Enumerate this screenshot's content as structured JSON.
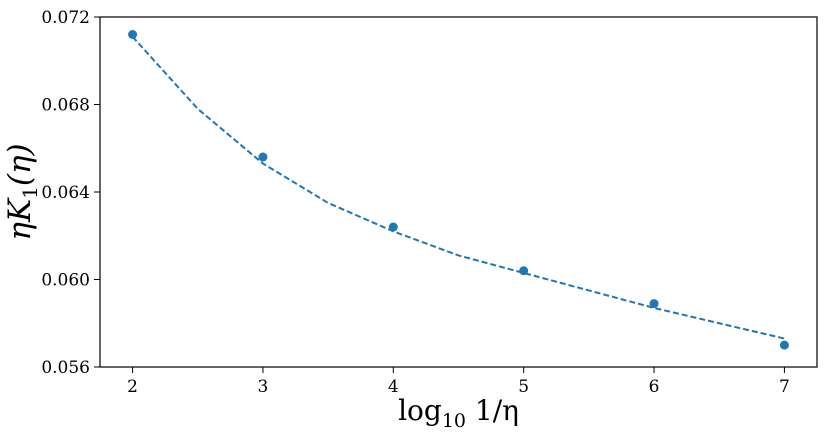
{
  "chart_data": {
    "type": "scatter",
    "xlabel": {
      "main": "log",
      "sub": "10",
      "tail": " 1/η"
    },
    "ylabel": {
      "main": "ηK",
      "sub": "1",
      "tail": "(η)"
    },
    "xlim": [
      1.75,
      7.25
    ],
    "ylim": [
      0.056,
      0.072
    ],
    "x_ticks": [
      2,
      3,
      4,
      5,
      6,
      7
    ],
    "y_ticks": [
      0.056,
      0.06,
      0.064,
      0.068,
      0.072
    ],
    "y_tick_labels": [
      "0.056",
      "0.060",
      "0.064",
      "0.068",
      "0.072"
    ],
    "grid": false,
    "series": [
      {
        "kind": "points",
        "color": "#1f77b4",
        "x": [
          2,
          3,
          4,
          5,
          6,
          7
        ],
        "y": [
          0.0712,
          0.0656,
          0.0624,
          0.0604,
          0.0589,
          0.057
        ]
      },
      {
        "kind": "dashed-fit",
        "color": "#1f77b4",
        "x": [
          2.0,
          2.5,
          3.0,
          3.5,
          4.0,
          4.5,
          5.0,
          5.5,
          6.0,
          6.5,
          7.0
        ],
        "y": [
          0.0711,
          0.0678,
          0.0653,
          0.0635,
          0.0622,
          0.0611,
          0.0603,
          0.0595,
          0.0587,
          0.058,
          0.0573
        ]
      }
    ]
  }
}
